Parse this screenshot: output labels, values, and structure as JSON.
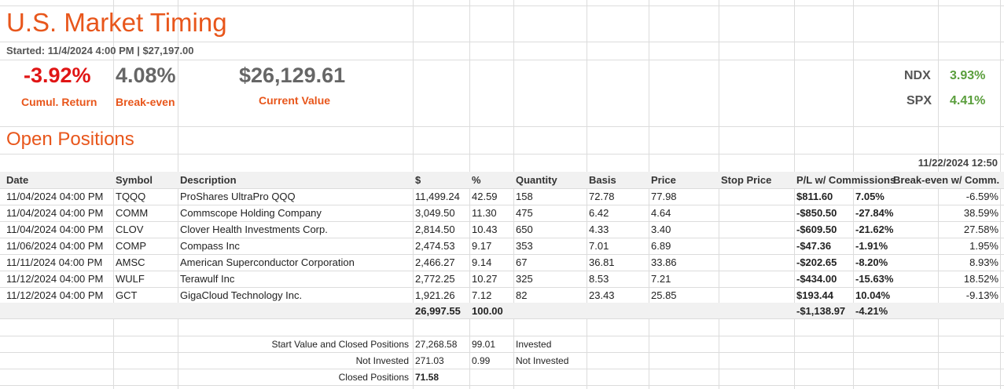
{
  "sheet": {
    "title": "U.S. Market Timing",
    "started": "Started: 11/4/2024 4:00 PM | $27,197.00",
    "cumul_return": "-3.92%",
    "cumul_return_label": "Cumul. Return",
    "break_even": "4.08%",
    "break_even_label": "Break-even",
    "current_value": "$26,129.61",
    "current_value_label": "Current Value",
    "ndx_label": "NDX",
    "ndx_value": "3.93%",
    "spx_label": "SPX",
    "spx_value": "4.41%",
    "section_title": "Open Positions",
    "timestamp": "11/22/2024 12:50"
  },
  "columns": [
    "Date",
    "Symbol",
    "Description",
    "$",
    "%",
    "Quantity",
    "Basis",
    "Price",
    "Stop Price",
    "P/L w/ Commissions",
    "Break-even w/ Comm."
  ],
  "rows": [
    {
      "date": "11/04/2024 04:00 PM",
      "symbol": "TQQQ",
      "desc": "ProShares UltraPro QQQ",
      "amount": "11,499.24",
      "pct": "42.59",
      "qty": "158",
      "basis": "72.78",
      "price": "77.98",
      "stop": "",
      "pl": "$811.60",
      "pl_pct": "7.05%",
      "be": "-6.59%",
      "pos": true
    },
    {
      "date": "11/04/2024 04:00 PM",
      "symbol": "COMM",
      "desc": "Commscope Holding Company",
      "amount": "3,049.50",
      "pct": "11.30",
      "qty": "475",
      "basis": "6.42",
      "price": "4.64",
      "stop": "",
      "pl": "-$850.50",
      "pl_pct": "-27.84%",
      "be": "38.59%",
      "pos": false
    },
    {
      "date": "11/04/2024 04:00 PM",
      "symbol": "CLOV",
      "desc": "Clover Health Investments Corp.",
      "amount": "2,814.50",
      "pct": "10.43",
      "qty": "650",
      "basis": "4.33",
      "price": "3.40",
      "stop": "",
      "pl": "-$609.50",
      "pl_pct": "-21.62%",
      "be": "27.58%",
      "pos": false
    },
    {
      "date": "11/06/2024 04:00 PM",
      "symbol": "COMP",
      "desc": "Compass Inc",
      "amount": "2,474.53",
      "pct": "9.17",
      "qty": "353",
      "basis": "7.01",
      "price": "6.89",
      "stop": "",
      "pl": "-$47.36",
      "pl_pct": "-1.91%",
      "be": "1.95%",
      "pos": false
    },
    {
      "date": "11/11/2024 04:00 PM",
      "symbol": "AMSC",
      "desc": "American Superconductor Corporation",
      "amount": "2,466.27",
      "pct": "9.14",
      "qty": "67",
      "basis": "36.81",
      "price": "33.86",
      "stop": "",
      "pl": "-$202.65",
      "pl_pct": "-8.20%",
      "be": "8.93%",
      "pos": false
    },
    {
      "date": "11/12/2024 04:00 PM",
      "symbol": "WULF",
      "desc": "Terawulf Inc",
      "amount": "2,772.25",
      "pct": "10.27",
      "qty": "325",
      "basis": "8.53",
      "price": "7.21",
      "stop": "",
      "pl": "-$434.00",
      "pl_pct": "-15.63%",
      "be": "18.52%",
      "pos": false
    },
    {
      "date": "11/12/2024 04:00 PM",
      "symbol": "GCT",
      "desc": "GigaCloud Technology Inc.",
      "amount": "1,921.26",
      "pct": "7.12",
      "qty": "82",
      "basis": "23.43",
      "price": "25.85",
      "stop": "",
      "pl": "$193.44",
      "pl_pct": "10.04%",
      "be": "-9.13%",
      "pos": true
    }
  ],
  "totals": {
    "amount": "26,997.55",
    "pct": "100.00",
    "pl": "-$1,138.97",
    "pl_pct": "-4.21%"
  },
  "summary": [
    {
      "label": "Start Value and Closed Positions",
      "value": "27,268.58",
      "pct": "99.01",
      "note": "Invested"
    },
    {
      "label": "Not Invested",
      "value": "271.03",
      "pct": "0.99",
      "note": "Not Invested"
    },
    {
      "label": "Closed Positions",
      "value": "71.58",
      "pct": "",
      "note": ""
    }
  ],
  "colors": {
    "accent": "#e8561b",
    "negative": "#e01515",
    "positive": "#5a9e3c"
  }
}
